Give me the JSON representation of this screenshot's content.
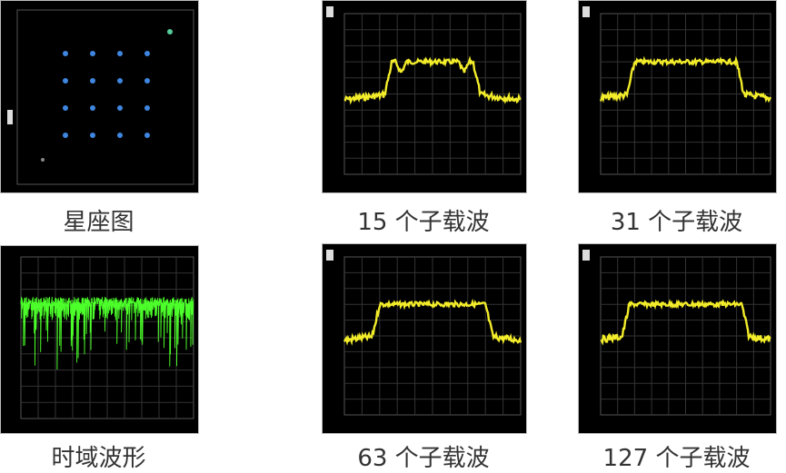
{
  "captions": {
    "constellation": "星座图",
    "sc15": "15 个子载波",
    "sc31": "31 个子载波",
    "time": "时域波形",
    "sc63": "63 个子载波",
    "sc127": "127 个子载波"
  },
  "colors": {
    "spectrum": "#f2ec2a",
    "time": "#4cff2a",
    "constellation": "#3f86e0",
    "background": "#000000"
  }
}
